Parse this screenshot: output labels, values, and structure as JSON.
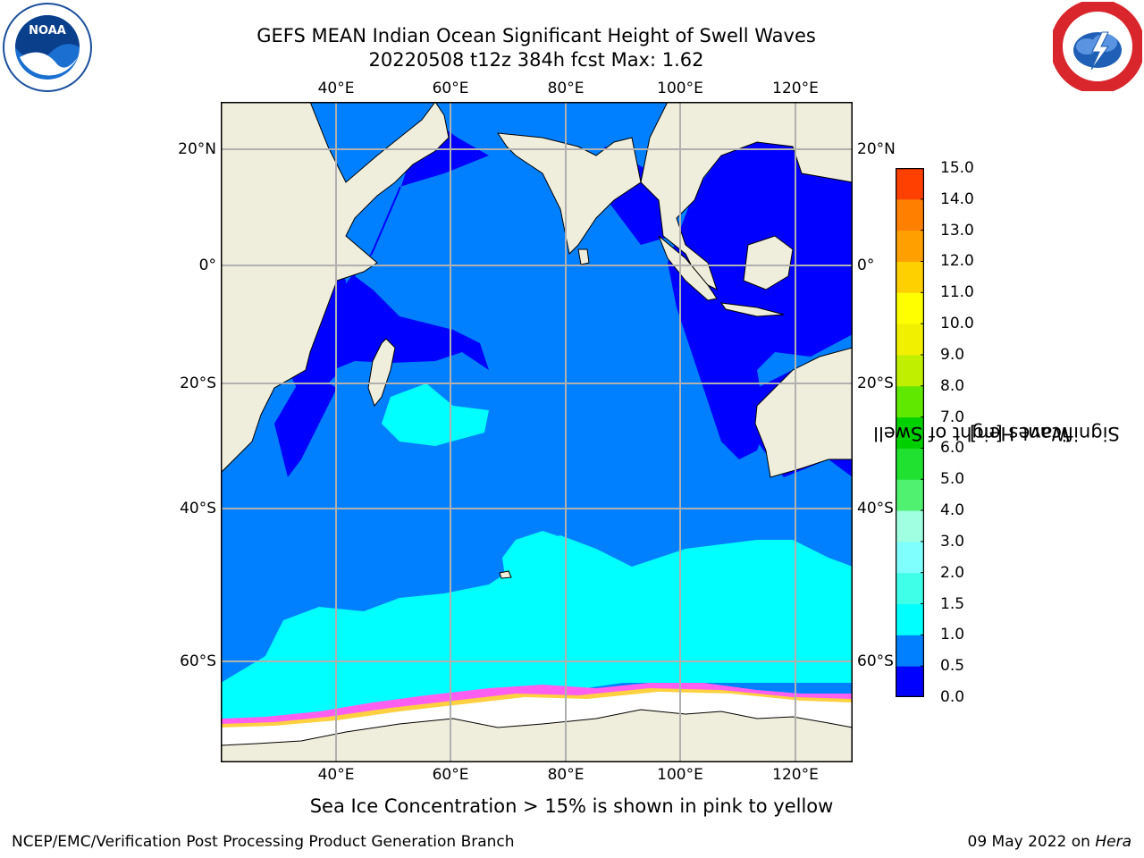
{
  "header": {
    "title_line1": "GEFS MEAN Indian Ocean Significant Height of Swell Waves",
    "title_line2": "20220508 t12z 384h fcst   Max: 1.62"
  },
  "logos": {
    "left": {
      "icon": "noaa-logo",
      "text": "NOAA"
    },
    "right": {
      "icon": "nws-logo"
    }
  },
  "map": {
    "extent": {
      "lon": [
        20,
        130
      ],
      "lat": [
        -68.5,
        28
      ]
    },
    "lon_ticks": [
      "40°E",
      "60°E",
      "80°E",
      "100°E",
      "120°E"
    ],
    "lon_values": [
      40,
      60,
      80,
      100,
      120
    ],
    "lat_ticks": [
      "20°N",
      "0°",
      "20°S",
      "40°S",
      "60°S"
    ],
    "lat_values": [
      20,
      0,
      -20,
      -40,
      -60
    ],
    "colors": {
      "land": "#efeedc",
      "ocean_default": "#0080ff",
      "ice": "#ffffff",
      "ice_edge_pink": "#ff5ff0",
      "ice_edge_yellow": "#ffd040",
      "grid": "#b0b0b0"
    }
  },
  "colorbar": {
    "title_line1": "Significant Height of Swell",
    "title_line2": "Waves [m]",
    "labels": [
      "15.0",
      "14.0",
      "13.0",
      "12.0",
      "11.0",
      "10.0",
      "9.0",
      "8.0",
      "7.0",
      "6.0",
      "5.0",
      "4.0",
      "3.0",
      "2.0",
      "1.5",
      "1.0",
      "0.5",
      "0.0"
    ],
    "levels": [
      0.0,
      0.5,
      1.0,
      1.5,
      2.0,
      3.0,
      4.0,
      5.0,
      6.0,
      7.0,
      8.0,
      9.0,
      10.0,
      11.0,
      12.0,
      13.0,
      14.0,
      15.0
    ],
    "colors": [
      "#0000ff",
      "#0080ff",
      "#00ffff",
      "#40ffe8",
      "#80ffff",
      "#a0ffe0",
      "#50f070",
      "#20e030",
      "#00d000",
      "#60e800",
      "#c0f000",
      "#f0f000",
      "#ffff00",
      "#ffd000",
      "#ffa000",
      "#ff8000",
      "#ff4000",
      "#ff0000"
    ]
  },
  "caption": "Sea Ice Concentration > 15% is shown in pink to yellow",
  "footer": {
    "left": "NCEP/EMC/Verification Post Processing Product Generation Branch",
    "right_prefix": "09 May 2022 on ",
    "right_machine": "Hera"
  }
}
